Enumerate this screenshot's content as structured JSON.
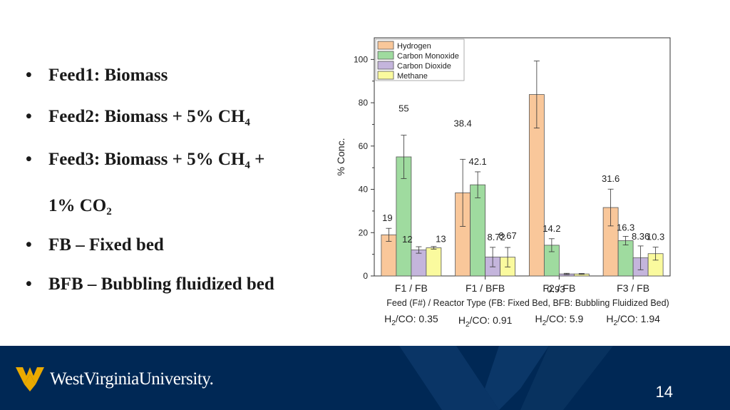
{
  "bullets": [
    {
      "text": "Feed1: Biomass"
    },
    {
      "text": "Feed2: Biomass + 5% CH",
      "sub": "4"
    },
    {
      "text": "Feed3: Biomass + 5% CH",
      "sub": "4",
      "suffix": " +"
    },
    {
      "text": "1% CO",
      "sub": "2",
      "continuation": true
    },
    {
      "text": "FB – Fixed bed"
    },
    {
      "text": "BFB – Bubbling fluidized bed"
    }
  ],
  "bullet_symbol": "•",
  "chart_data": {
    "type": "bar",
    "categories": [
      "F1 / FB",
      "F1 / BFB",
      "F2 / FB",
      "F3 / FB"
    ],
    "series": [
      {
        "name": "Hydrogen",
        "color": "#f9c79a",
        "values": [
          19,
          38.4,
          83.8,
          31.6
        ],
        "errors": [
          3,
          15.5,
          15.5,
          8.5
        ],
        "labels": [
          "19",
          "38.4",
          "83.8",
          "31.6"
        ]
      },
      {
        "name": "Carbon Monoxide",
        "color": "#9fdb9f",
        "values": [
          55,
          42.1,
          14.2,
          16.3
        ],
        "errors": [
          10,
          6,
          3,
          2
        ],
        "labels": [
          "55",
          "42.1",
          "14.2",
          "16.3"
        ]
      },
      {
        "name": "Carbon Dioxide",
        "color": "#c4b5dc",
        "values": [
          12,
          8.72,
          0.93,
          8.36
        ],
        "errors": [
          1.5,
          4.5,
          0.3,
          5.5
        ],
        "labels": [
          "12",
          "8.72",
          "0.93",
          "8.36"
        ]
      },
      {
        "name": "Methane",
        "color": "#fafa9e",
        "values": [
          13,
          8.67,
          0.93,
          10.3
        ],
        "errors": [
          0.6,
          4.5,
          0.2,
          3
        ],
        "labels": [
          "13",
          "8.67",
          "",
          "10.3"
        ]
      }
    ],
    "ylabel": "% Conc.",
    "xlabel": "Feed (F#) / Reactor Type (FB: Fixed Bed, BFB: Bubbling Fluidized Bed)",
    "ylim": [
      0,
      110
    ],
    "yticks": [
      0,
      20,
      40,
      60,
      80,
      100
    ],
    "ratios": [
      {
        "prefix": "H",
        "sub": "2",
        "text": "/CO: 0.35"
      },
      {
        "prefix": "H",
        "sub": "2",
        "text": "/CO: 0.91"
      },
      {
        "prefix": "H",
        "sub": "2",
        "text": "/CO: 5.9"
      },
      {
        "prefix": "H",
        "sub": "2",
        "text": "/CO: 1.94"
      }
    ],
    "legend_position": "top-left",
    "grid": false
  },
  "footer": {
    "brand": "WestVirginiaUniversity.",
    "page_number": "14",
    "background": "#002855",
    "accent": "#eaaa00"
  }
}
